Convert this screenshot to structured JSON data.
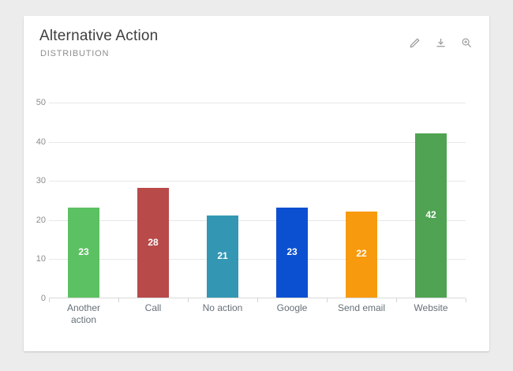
{
  "card": {
    "title": "Alternative Action",
    "subtitle": "DISTRIBUTION",
    "action_icons": [
      "edit-icon",
      "download-icon",
      "zoom-in-icon"
    ]
  },
  "colors": {
    "page_background": "#ececec",
    "card_background": "#ffffff",
    "gridline": "#e8e8e8",
    "axis_line": "#d9d9d9",
    "title_text": "#3f3f3f",
    "subtitle_text": "#8e8e8e",
    "ytick_text": "#8c8c8c",
    "category_text": "#667077",
    "value_label_text": "#ffffff",
    "icon": "#9e9e9e"
  },
  "chart_data": {
    "type": "bar",
    "title": "Alternative Action",
    "subtitle": "DISTRIBUTION",
    "categories": [
      "Another action",
      "Call",
      "No action",
      "Google",
      "Send email",
      "Website"
    ],
    "values": [
      23,
      28,
      21,
      23,
      22,
      42
    ],
    "bar_colors": [
      "#5cc162",
      "#b84a4a",
      "#3397b4",
      "#0b50d0",
      "#f89a0e",
      "#4fa352"
    ],
    "value_labels_position": "inside-center",
    "xlabel": "",
    "ylabel": "",
    "ylim": [
      0,
      50
    ],
    "ytick_step": 10,
    "yticks": [
      0,
      10,
      20,
      30,
      40,
      50
    ],
    "grid": true,
    "legend": false
  }
}
